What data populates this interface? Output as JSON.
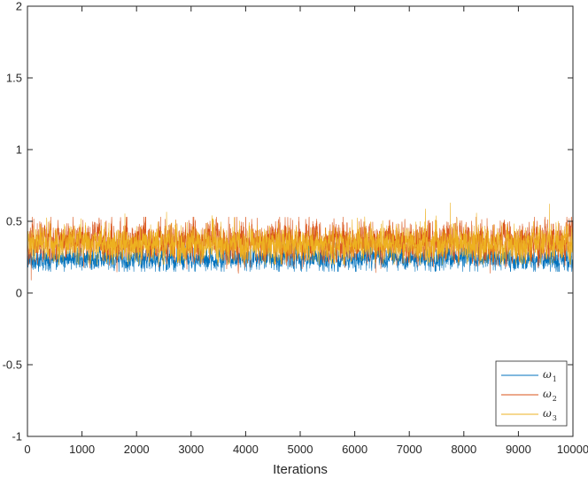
{
  "chart_data": {
    "type": "line",
    "title": "",
    "xlabel": "Iterations",
    "ylabel": "",
    "xlim": [
      0,
      10000
    ],
    "ylim": [
      -1,
      2
    ],
    "xticks": [
      0,
      1000,
      2000,
      3000,
      4000,
      5000,
      6000,
      7000,
      8000,
      9000,
      10000
    ],
    "xtick_labels": [
      "0",
      "1000",
      "2000",
      "3000",
      "4000",
      "5000",
      "6000",
      "7000",
      "8000",
      "9000",
      "10000"
    ],
    "yticks": [
      -1,
      -0.5,
      0,
      0.5,
      1,
      1.5,
      2
    ],
    "ytick_labels": [
      "-1",
      "-0.5",
      "0",
      "0.5",
      "1",
      "1.5",
      "2"
    ],
    "grid": false,
    "legend_position": "bottom-right",
    "series": [
      {
        "name": "ω1",
        "label_base": "ω",
        "label_sub": "1",
        "color": "#0072BD",
        "start": 0.0,
        "mean": 0.24,
        "noise_sd": 0.032,
        "range": [
          0.15,
          0.36
        ]
      },
      {
        "name": "ω2",
        "label_base": "ω",
        "label_sub": "2",
        "color": "#D95319",
        "start": 0.0,
        "mean": 0.36,
        "noise_sd": 0.055,
        "range": [
          0.09,
          0.53
        ]
      },
      {
        "name": "ω3",
        "label_base": "ω",
        "label_sub": "3",
        "color": "#EDB120",
        "start": 1.0,
        "mean": 0.34,
        "noise_sd": 0.05,
        "range": [
          0.2,
          0.66
        ]
      }
    ],
    "n_iterations": 10000
  }
}
